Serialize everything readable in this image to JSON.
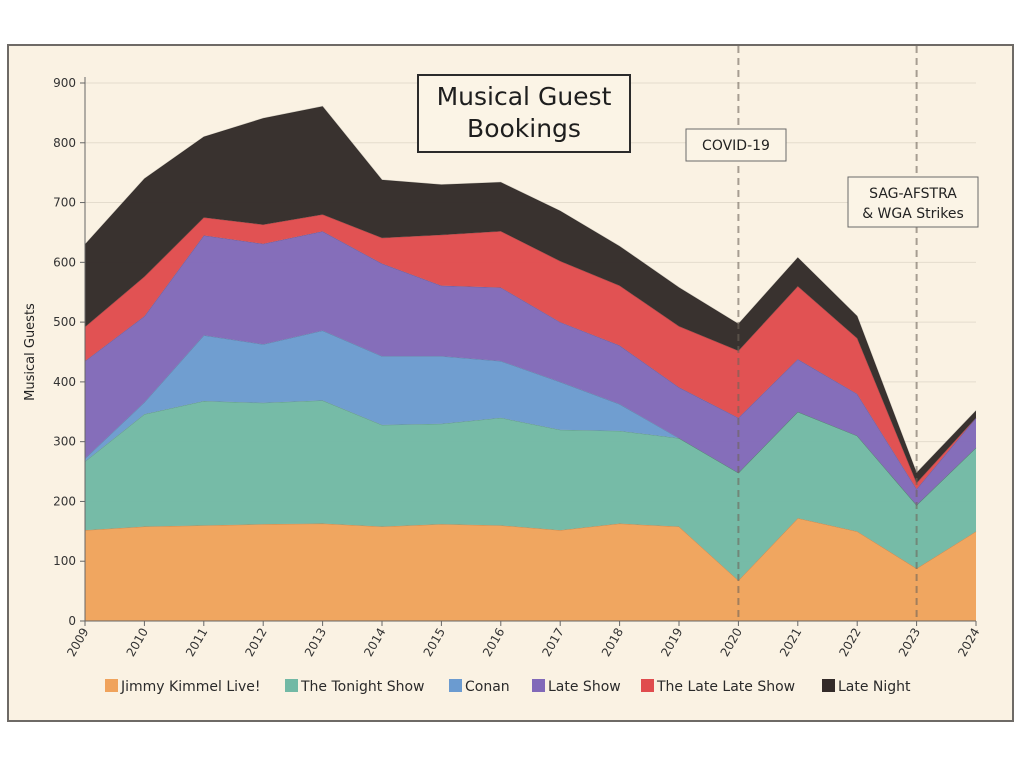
{
  "chart_data": {
    "type": "area",
    "stacked": true,
    "title": "Musical Guest Bookings",
    "title_lines": [
      "Musical Guest",
      "Bookings"
    ],
    "xlabel": "",
    "ylabel": "Musical Guests",
    "x": [
      2009,
      2010,
      2011,
      2012,
      2013,
      2014,
      2015,
      2016,
      2017,
      2018,
      2019,
      2020,
      2021,
      2022,
      2023,
      2024
    ],
    "x_tick_labels": [
      "2009",
      "2010",
      "2011",
      "2012",
      "2013",
      "2014",
      "2015",
      "2016",
      "2017",
      "2018",
      "2019",
      "2020",
      "2021",
      "2022",
      "2023",
      "2024"
    ],
    "ylim": [
      0,
      900
    ],
    "y_ticks": [
      0,
      100,
      200,
      300,
      400,
      500,
      600,
      700,
      800,
      900
    ],
    "grid": true,
    "legend_position": "bottom",
    "series": [
      {
        "name": "Jimmy Kimmel Live!",
        "color": "#f0a35c",
        "values": [
          152,
          158,
          160,
          162,
          163,
          158,
          162,
          160,
          152,
          163,
          158,
          68,
          172,
          150,
          88,
          150
        ]
      },
      {
        "name": "The Tonight Show",
        "color": "#72b9a5",
        "values": [
          115,
          188,
          208,
          203,
          206,
          170,
          168,
          180,
          168,
          155,
          148,
          180,
          178,
          160,
          106,
          140
        ]
      },
      {
        "name": "Conan",
        "color": "#6b9bd0",
        "values": [
          5,
          20,
          110,
          98,
          117,
          115,
          113,
          95,
          80,
          45,
          0,
          0,
          0,
          0,
          0,
          0
        ]
      },
      {
        "name": "Late Show",
        "color": "#8169b9",
        "values": [
          163,
          144,
          167,
          168,
          166,
          155,
          118,
          123,
          100,
          98,
          85,
          92,
          88,
          70,
          27,
          50
        ]
      },
      {
        "name": "The Late Late Show",
        "color": "#e04c4e",
        "values": [
          57,
          66,
          30,
          32,
          28,
          43,
          85,
          94,
          102,
          100,
          102,
          112,
          122,
          93,
          10,
          0
        ]
      },
      {
        "name": "Late Night",
        "color": "#332b29",
        "values": [
          138,
          164,
          135,
          178,
          181,
          97,
          84,
          82,
          84,
          66,
          65,
          45,
          48,
          37,
          17,
          12
        ]
      }
    ],
    "annotations": [
      {
        "x": 2020,
        "label_lines": [
          "COVID-19"
        ]
      },
      {
        "x": 2023,
        "label_lines": [
          "SAG-AFSTRA",
          "& WGA Strikes"
        ]
      }
    ]
  }
}
